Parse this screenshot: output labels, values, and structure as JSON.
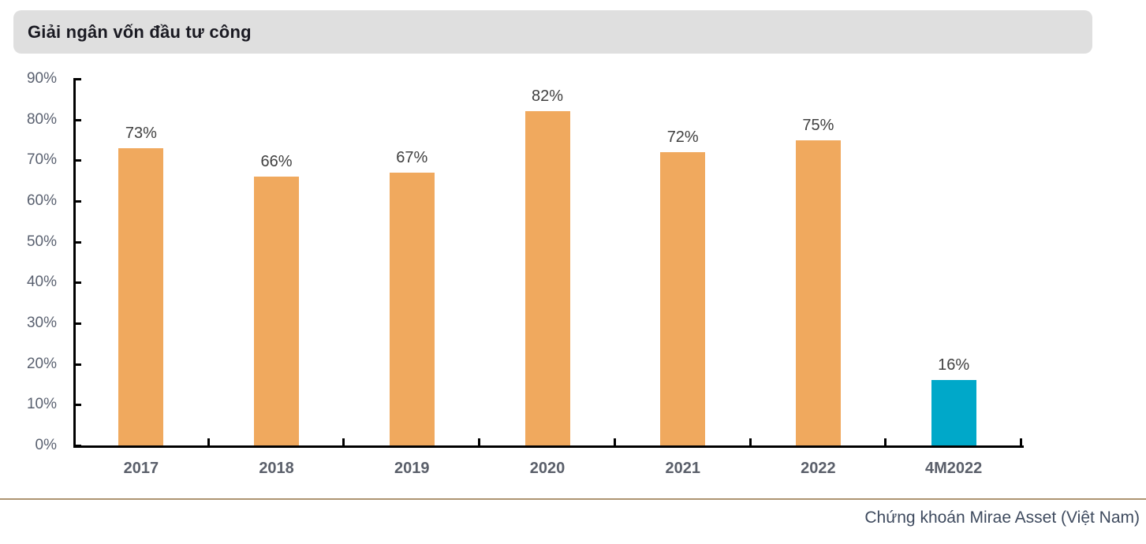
{
  "title": "Giải ngân vốn đầu tư công",
  "source": "Chứng khoán Mirae Asset (Việt Nam)",
  "colors": {
    "bar_default": "#F0A95E",
    "bar_highlight": "#00A8C9",
    "axis": "#000000",
    "ytick_label": "#5A6170",
    "xcat_label": "#5A5F6A",
    "data_label": "#404040",
    "title_bar_bg": "#DFDFDF",
    "divider": "#AD9472",
    "source_text": "#3E4A5E"
  },
  "chart_data": {
    "type": "bar",
    "title": "Giải ngân vốn đầu tư công",
    "categories": [
      "2017",
      "2018",
      "2019",
      "2020",
      "2021",
      "2022",
      "4M2022"
    ],
    "values": [
      73,
      66,
      67,
      82,
      72,
      75,
      16
    ],
    "data_labels": [
      "73%",
      "66%",
      "67%",
      "82%",
      "72%",
      "75%",
      "16%"
    ],
    "bar_colors": [
      "#F0A95E",
      "#F0A95E",
      "#F0A95E",
      "#F0A95E",
      "#F0A95E",
      "#F0A95E",
      "#00A8C9"
    ],
    "xlabel": "",
    "ylabel": "",
    "ylim": [
      0,
      90
    ],
    "ytick_step": 10,
    "ytick_labels": [
      "0%",
      "10%",
      "20%",
      "30%",
      "40%",
      "50%",
      "60%",
      "70%",
      "80%",
      "90%"
    ],
    "grid": false,
    "legend": "none"
  }
}
